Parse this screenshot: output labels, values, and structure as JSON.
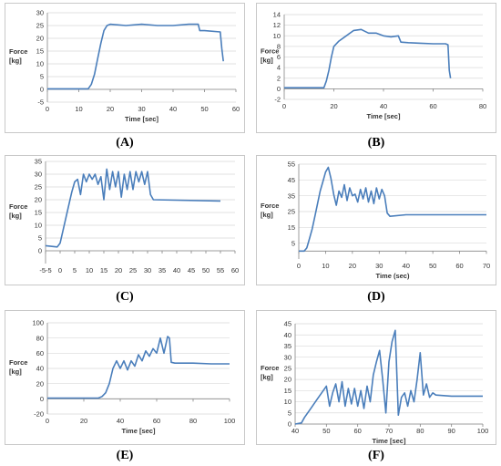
{
  "colors": {
    "series": "#4a7ebb",
    "grid": "#d9d9d9",
    "axis": "#868686"
  },
  "chart_data": [
    {
      "type": "line",
      "caption": "(A)",
      "xlabel": "Time [sec]",
      "ylabel": [
        "Force",
        "[kg]"
      ],
      "xlim": [
        0,
        60
      ],
      "ylim": [
        -5,
        30
      ],
      "xticks": [
        0,
        10,
        20,
        30,
        40,
        50,
        60
      ],
      "yticks": [
        -5,
        0,
        5,
        10,
        15,
        20,
        25,
        30
      ],
      "grid": true,
      "legend": "none",
      "series": [
        {
          "x": [
            0,
            13,
            14,
            15,
            16,
            17,
            18,
            19,
            20,
            25,
            30,
            35,
            40,
            45,
            48,
            48.5,
            50,
            55,
            55.5,
            56
          ],
          "y": [
            0.2,
            0.2,
            2,
            6,
            12,
            18,
            23,
            25,
            25.5,
            25,
            25.5,
            25,
            25,
            25.5,
            25.5,
            23,
            23,
            22.5,
            16,
            11
          ]
        }
      ]
    },
    {
      "type": "line",
      "caption": "(B)",
      "xlabel": "Time [sec]",
      "ylabel": [
        "Force",
        "[kg]"
      ],
      "xlim": [
        0,
        80
      ],
      "ylim": [
        -2,
        14
      ],
      "xticks": [
        0,
        20,
        40,
        60,
        80
      ],
      "yticks": [
        -2,
        0,
        2,
        4,
        6,
        8,
        10,
        12,
        14
      ],
      "grid": true,
      "legend": "none",
      "series": [
        {
          "x": [
            0,
            16,
            17,
            18,
            19,
            20,
            22,
            25,
            28,
            31,
            34,
            37,
            40,
            43,
            46,
            47,
            50,
            55,
            60,
            65,
            66,
            66.5,
            67
          ],
          "y": [
            0.2,
            0.2,
            1.5,
            3.5,
            6,
            8,
            9,
            10,
            11,
            11.2,
            10.5,
            10.5,
            10,
            9.8,
            10,
            8.8,
            8.7,
            8.6,
            8.5,
            8.5,
            8.3,
            3.5,
            2
          ]
        }
      ]
    },
    {
      "type": "line",
      "caption": "(C)",
      "xlabel": "",
      "ylabel": [
        "Force",
        "[kg]"
      ],
      "xlim": [
        -5,
        60
      ],
      "ylim": [
        -5,
        35
      ],
      "xticks": [
        -5,
        0,
        5,
        10,
        15,
        20,
        25,
        30,
        35,
        40,
        45,
        50,
        55,
        60
      ],
      "xticklabels": [
        "-5-5",
        "0",
        "5",
        "10",
        "15",
        "20",
        "25",
        "30",
        "35",
        "40",
        "45",
        "50",
        "55",
        "60"
      ],
      "yticks": [
        0,
        5,
        10,
        15,
        20,
        25,
        30,
        35
      ],
      "grid": true,
      "legend": "none",
      "series": [
        {
          "x": [
            -5,
            -1,
            0,
            2,
            4,
            5,
            6,
            7,
            8,
            9,
            10,
            11,
            12,
            13,
            14,
            15,
            16,
            17,
            18,
            19,
            20,
            21,
            22,
            23,
            24,
            25,
            26,
            27,
            28,
            29,
            30,
            31,
            32,
            55
          ],
          "y": [
            2,
            1.5,
            3,
            13,
            23,
            27,
            28,
            22,
            30,
            27,
            30,
            28,
            30,
            26,
            29,
            20,
            32,
            24,
            31,
            25,
            31,
            21,
            30,
            24,
            31,
            24,
            31,
            27,
            31,
            26,
            31,
            22,
            20,
            19.5
          ]
        }
      ]
    },
    {
      "type": "line",
      "caption": "(D)",
      "xlabel": "Time (sec)",
      "ylabel": [
        "Force",
        "[kg]"
      ],
      "xlim": [
        0,
        70
      ],
      "ylim": [
        -5,
        55
      ],
      "xticks": [
        0,
        10,
        20,
        30,
        40,
        50,
        60,
        70
      ],
      "yticks": [
        5,
        15,
        25,
        35,
        45,
        55
      ],
      "grid": true,
      "legend": "none",
      "series": [
        {
          "x": [
            0,
            2,
            3,
            4,
            5,
            6,
            7,
            8,
            9,
            10,
            11,
            12,
            13,
            14,
            15,
            16,
            17,
            18,
            19,
            20,
            21,
            22,
            23,
            24,
            25,
            26,
            27,
            28,
            29,
            30,
            31,
            32,
            33,
            34,
            40,
            50,
            60,
            70
          ],
          "y": [
            0,
            0,
            2,
            8,
            14,
            22,
            30,
            38,
            44,
            50,
            53,
            46,
            36,
            29,
            38,
            34,
            42,
            32,
            40,
            35,
            36,
            31,
            39,
            33,
            40,
            31,
            38,
            30,
            40,
            33,
            39,
            35,
            24,
            22,
            23,
            23,
            23,
            23
          ]
        }
      ]
    },
    {
      "type": "line",
      "caption": "(E)",
      "xlabel": "Time [sec]",
      "ylabel": [
        "Force",
        "[kg]"
      ],
      "xlim": [
        0,
        100
      ],
      "ylim": [
        -20,
        100
      ],
      "xticks": [
        0,
        20,
        40,
        60,
        80,
        100
      ],
      "yticks": [
        -20,
        0,
        20,
        40,
        60,
        80,
        100
      ],
      "grid": true,
      "legend": "none",
      "series": [
        {
          "x": [
            0,
            28,
            30,
            32,
            34,
            36,
            38,
            40,
            42,
            44,
            46,
            48,
            50,
            52,
            54,
            56,
            58,
            60,
            62,
            64,
            66,
            67,
            68,
            70,
            80,
            90,
            100
          ],
          "y": [
            1,
            1,
            3,
            8,
            20,
            40,
            50,
            40,
            50,
            38,
            50,
            43,
            58,
            50,
            63,
            56,
            66,
            60,
            80,
            60,
            82,
            80,
            48,
            47,
            47,
            46,
            46
          ]
        }
      ]
    },
    {
      "type": "line",
      "caption": "(F)",
      "xlabel": "Time [sec]",
      "ylabel": [
        "Force",
        "[kg]"
      ],
      "xlim": [
        40,
        100
      ],
      "ylim": [
        0,
        45
      ],
      "xticks": [
        40,
        50,
        60,
        70,
        80,
        90,
        100
      ],
      "yticks": [
        0,
        5,
        10,
        15,
        20,
        25,
        30,
        35,
        40,
        45
      ],
      "grid": true,
      "legend": "none",
      "series": [
        {
          "x": [
            40,
            42,
            43,
            45,
            47,
            49,
            50,
            51,
            52,
            53,
            54,
            55,
            56,
            57,
            58,
            59,
            60,
            61,
            62,
            63,
            64,
            65,
            66,
            67,
            68,
            69,
            70,
            71,
            72,
            73,
            74,
            75,
            76,
            77,
            78,
            79,
            80,
            81,
            82,
            83,
            84,
            85,
            90,
            95,
            100
          ],
          "y": [
            0,
            0.5,
            3,
            7,
            11,
            15,
            17,
            8,
            14,
            18,
            10,
            19,
            8,
            16,
            9,
            16,
            8,
            15,
            7,
            17,
            10,
            22,
            28,
            33,
            20,
            5,
            28,
            37,
            42,
            4,
            12,
            14,
            8,
            15,
            10,
            20,
            32,
            13,
            18,
            12,
            14,
            13,
            12.5,
            12.5,
            12.5
          ]
        }
      ]
    }
  ]
}
